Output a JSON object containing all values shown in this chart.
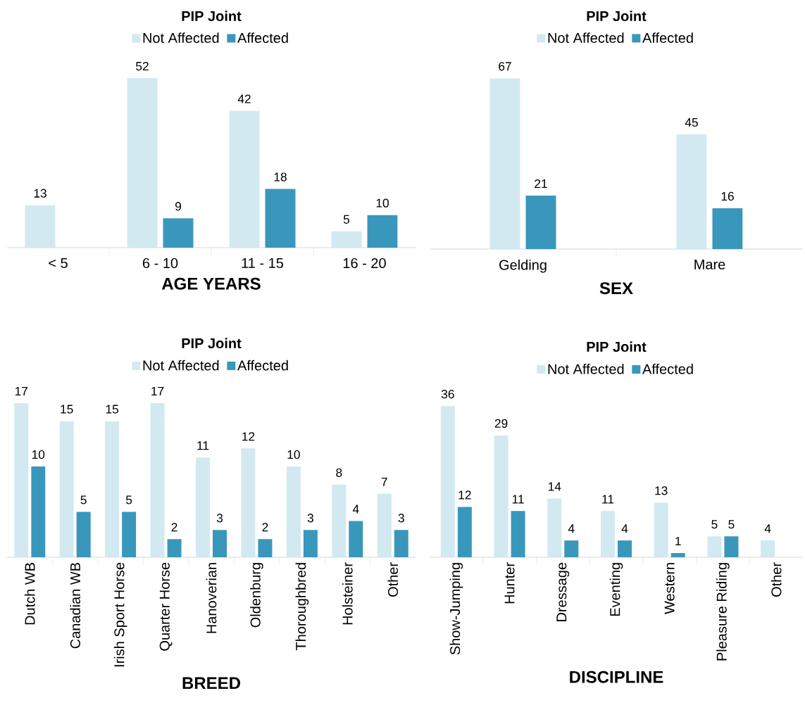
{
  "chart_data": [
    {
      "type": "bar",
      "title": "PIP Joint",
      "xlabel": "AGE YEARS",
      "categories": [
        "< 5",
        "6 - 10",
        "11 - 15",
        "16 - 20"
      ],
      "data_labels": true,
      "legend": "top",
      "series": [
        {
          "name": "Not Affected",
          "color": "#d3e9f1",
          "values": [
            13,
            52,
            42,
            5
          ]
        },
        {
          "name": "Affected",
          "color": "#3a97bc",
          "values": [
            null,
            9,
            18,
            10
          ]
        }
      ]
    },
    {
      "type": "bar",
      "title": "PIP Joint",
      "xlabel": "SEX",
      "categories": [
        "Gelding",
        "Mare"
      ],
      "data_labels": true,
      "legend": "top",
      "series": [
        {
          "name": "Not Affected",
          "color": "#d3e9f1",
          "values": [
            67,
            45
          ]
        },
        {
          "name": "Affected",
          "color": "#3a97bc",
          "values": [
            21,
            16
          ]
        }
      ]
    },
    {
      "type": "bar",
      "title": "PIP Joint",
      "xlabel": "BREED",
      "categories": [
        "Dutch WB",
        "Canadian WB",
        "Irish Sport Horse",
        "Quarter Horse",
        "Hanoverian",
        "Oldenburg",
        "Thoroughbred",
        "Holsteiner",
        "Other"
      ],
      "data_labels": true,
      "legend": "top",
      "series": [
        {
          "name": "Not Affected",
          "color": "#d3e9f1",
          "values": [
            17,
            15,
            15,
            17,
            11,
            12,
            10,
            8,
            7
          ]
        },
        {
          "name": "Affected",
          "color": "#3a97bc",
          "values": [
            10,
            5,
            5,
            2,
            3,
            2,
            3,
            4,
            3
          ]
        }
      ]
    },
    {
      "type": "bar",
      "title": "PIP Joint",
      "xlabel": "DISCIPLINE",
      "categories": [
        "Show-Jumping",
        "Hunter",
        "Dressage",
        "Eventing",
        "Western",
        "Pleasure Riding",
        "Other"
      ],
      "data_labels": true,
      "legend": "top",
      "series": [
        {
          "name": "Not Affected",
          "color": "#d3e9f1",
          "values": [
            36,
            29,
            14,
            11,
            13,
            5,
            4
          ]
        },
        {
          "name": "Affected",
          "color": "#3a97bc",
          "values": [
            12,
            11,
            4,
            4,
            1,
            5,
            null
          ]
        }
      ]
    }
  ]
}
